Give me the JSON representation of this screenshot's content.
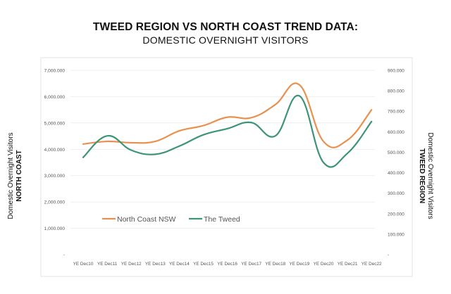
{
  "header": {
    "title": "TWEED REGION VS NORTH COAST TREND DATA:",
    "subtitle": "DOMESTIC OVERNIGHT VISITORS"
  },
  "axis_titles": {
    "left_line1": "Domestic Overnight Visitors",
    "left_line2": "NORTH COAST",
    "right_line1": "Domestic Overnight Visitors",
    "right_line2": "TWEED REGION"
  },
  "colors": {
    "north_coast": "#E8914E",
    "tweed": "#3D9478",
    "gridline": "#e6e6e6",
    "axis_text": "#555555"
  },
  "chart_data": {
    "type": "line",
    "title": "TWEED REGION VS NORTH COAST TREND DATA:",
    "subtitle": "DOMESTIC OVERNIGHT VISITORS",
    "xlabel": "",
    "categories": [
      "YE Dec10",
      "YE Dec11",
      "YE Dec12",
      "YE Dec13",
      "YE Dec14",
      "YE Dec15",
      "YE Dec16",
      "YE Dec17",
      "YE Dec18",
      "YE Dec19",
      "YE Dec20",
      "YE Dec21",
      "YE Dec22"
    ],
    "y_left": {
      "label": "Domestic Overnight Visitors NORTH COAST",
      "ylim": [
        0,
        7000000
      ],
      "ticks": [
        "-",
        "1,000.000",
        "2,000.000",
        "3,000.000",
        "4,000.000",
        "5,000.000",
        "6,000.000",
        "7,000.000"
      ]
    },
    "y_right": {
      "label": "Domestic Overnight Visitors TWEED REGION",
      "ylim": [
        0,
        900000
      ],
      "ticks": [
        "-",
        "100.000",
        "200.000",
        "300.000",
        "400.000",
        "500.000",
        "600.000",
        "700.000",
        "800.000",
        "900.000"
      ]
    },
    "series": [
      {
        "name": "North Coast NSW",
        "axis": "left",
        "values": [
          4200000,
          4300000,
          4250000,
          4300000,
          4700000,
          4900000,
          5220000,
          5200000,
          5700000,
          6450000,
          4300000,
          4350000,
          5500000
        ]
      },
      {
        "name": "The Tweed",
        "axis": "right",
        "values": [
          475000,
          580000,
          510000,
          490000,
          530000,
          585000,
          615000,
          645000,
          580000,
          775000,
          450000,
          495000,
          650000
        ]
      }
    ],
    "legend_position": "lower-left inside",
    "grid": true
  }
}
